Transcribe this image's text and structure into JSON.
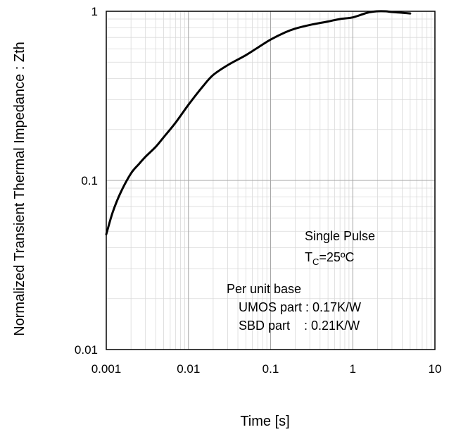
{
  "chart_data": {
    "type": "line",
    "xlabel": "Time [s]",
    "ylabel": "Normalized Transient Thermal Impedance : Zth",
    "x_scale": "log",
    "y_scale": "log",
    "xlim": [
      0.001,
      10
    ],
    "ylim": [
      0.01,
      1
    ],
    "x_ticks": [
      "0.001",
      "0.01",
      "0.1",
      "1",
      "10"
    ],
    "y_ticks": [
      "0.01",
      "0.1",
      "1"
    ],
    "grid": true,
    "series": [
      {
        "x": [
          0.001,
          0.0012,
          0.0015,
          0.002,
          0.0025,
          0.003,
          0.004,
          0.005,
          0.007,
          0.01,
          0.015,
          0.02,
          0.03,
          0.05,
          0.07,
          0.1,
          0.15,
          0.2,
          0.3,
          0.5,
          0.7,
          1.0,
          1.5,
          2.0,
          2.5,
          3.0,
          4.0,
          5.0
        ],
        "y": [
          0.048,
          0.065,
          0.085,
          0.11,
          0.125,
          0.138,
          0.158,
          0.18,
          0.22,
          0.28,
          0.36,
          0.42,
          0.48,
          0.55,
          0.61,
          0.68,
          0.75,
          0.79,
          0.83,
          0.87,
          0.9,
          0.92,
          0.98,
          1.0,
          1.0,
          0.99,
          0.98,
          0.97
        ]
      }
    ],
    "annotations": {
      "single_pulse": "Single Pulse",
      "tc_main": "T",
      "tc_sub": "C",
      "tc_rest": "=25ºC",
      "per_unit": "Per unit base",
      "umos": "UMOS part : 0.17K/W",
      "sbd": "SBD part    : 0.21K/W"
    }
  }
}
